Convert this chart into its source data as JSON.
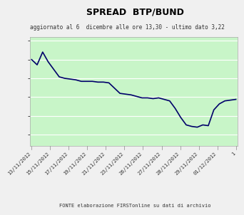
{
  "title": "SPREAD  BTP/BUND",
  "subtitle": "aggiornato al 6  dicembre alle ore 13,30 - ultimo dato 3,22",
  "footer": "FONTE elaborazione FIRSTonline su dati di archivio",
  "outer_bg_color": "#f0f0f0",
  "plot_bg_color": "#c8f5c8",
  "xtick_bg_color": "#ffffff",
  "line_color": "#00006A",
  "line_width": 1.2,
  "x_labels": [
    "13/11/2012",
    "15/11/2012",
    "17/11/2012",
    "19/11/2012",
    "21/11/2012",
    "23/11/2012",
    "26/11/2012",
    "27/11/2012",
    "28/11/2012",
    "29/11/2012",
    "01/12/2012",
    "1"
  ],
  "y_values": [
    3.75,
    3.68,
    3.85,
    3.72,
    3.62,
    3.52,
    3.5,
    3.49,
    3.48,
    3.46,
    3.46,
    3.46,
    3.45,
    3.45,
    3.44,
    3.37,
    3.3,
    3.29,
    3.28,
    3.26,
    3.24,
    3.24,
    3.23,
    3.24,
    3.22,
    3.2,
    3.1,
    2.98,
    2.88,
    2.86,
    2.85,
    2.88,
    2.87,
    3.08,
    3.16,
    3.2,
    3.21,
    3.22
  ],
  "ylim_min": 2.6,
  "ylim_max": 4.05,
  "grid_color": "#ffffff",
  "title_fontsize": 9,
  "subtitle_fontsize": 5.5,
  "footer_fontsize": 5.0,
  "tick_label_fontsize": 5.0,
  "ytick_fontsize": 5.5
}
